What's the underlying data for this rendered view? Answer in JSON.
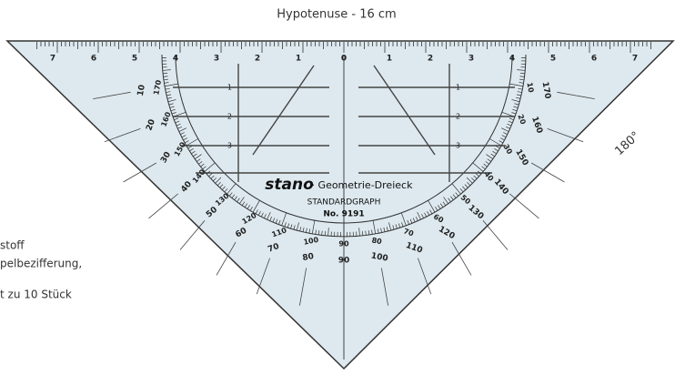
{
  "caption": "Hypotenuse - 16 cm",
  "angle_label": "180°",
  "side_text": [
    "stoff",
    "pelbezifferung,",
    "t zu 10 Stück"
  ],
  "brand": "stano",
  "product": "· Geometrie-Dreieck",
  "model": "STANDARDGRAPH",
  "number": "No. 9191",
  "ruler_labels": [
    7,
    6,
    5,
    4,
    3,
    2,
    1,
    0,
    1,
    2,
    3,
    4,
    5,
    6,
    7
  ],
  "side_scale_labels": [
    1,
    2,
    3
  ],
  "protractor_outer": [
    10,
    20,
    30,
    40,
    50,
    60,
    70,
    80,
    90,
    100,
    110,
    120,
    130,
    140,
    150,
    160,
    170
  ],
  "protractor_inner": [
    170,
    160,
    150,
    140,
    130,
    120,
    110,
    100,
    90,
    80,
    70,
    60,
    50,
    40,
    30,
    20,
    10
  ]
}
